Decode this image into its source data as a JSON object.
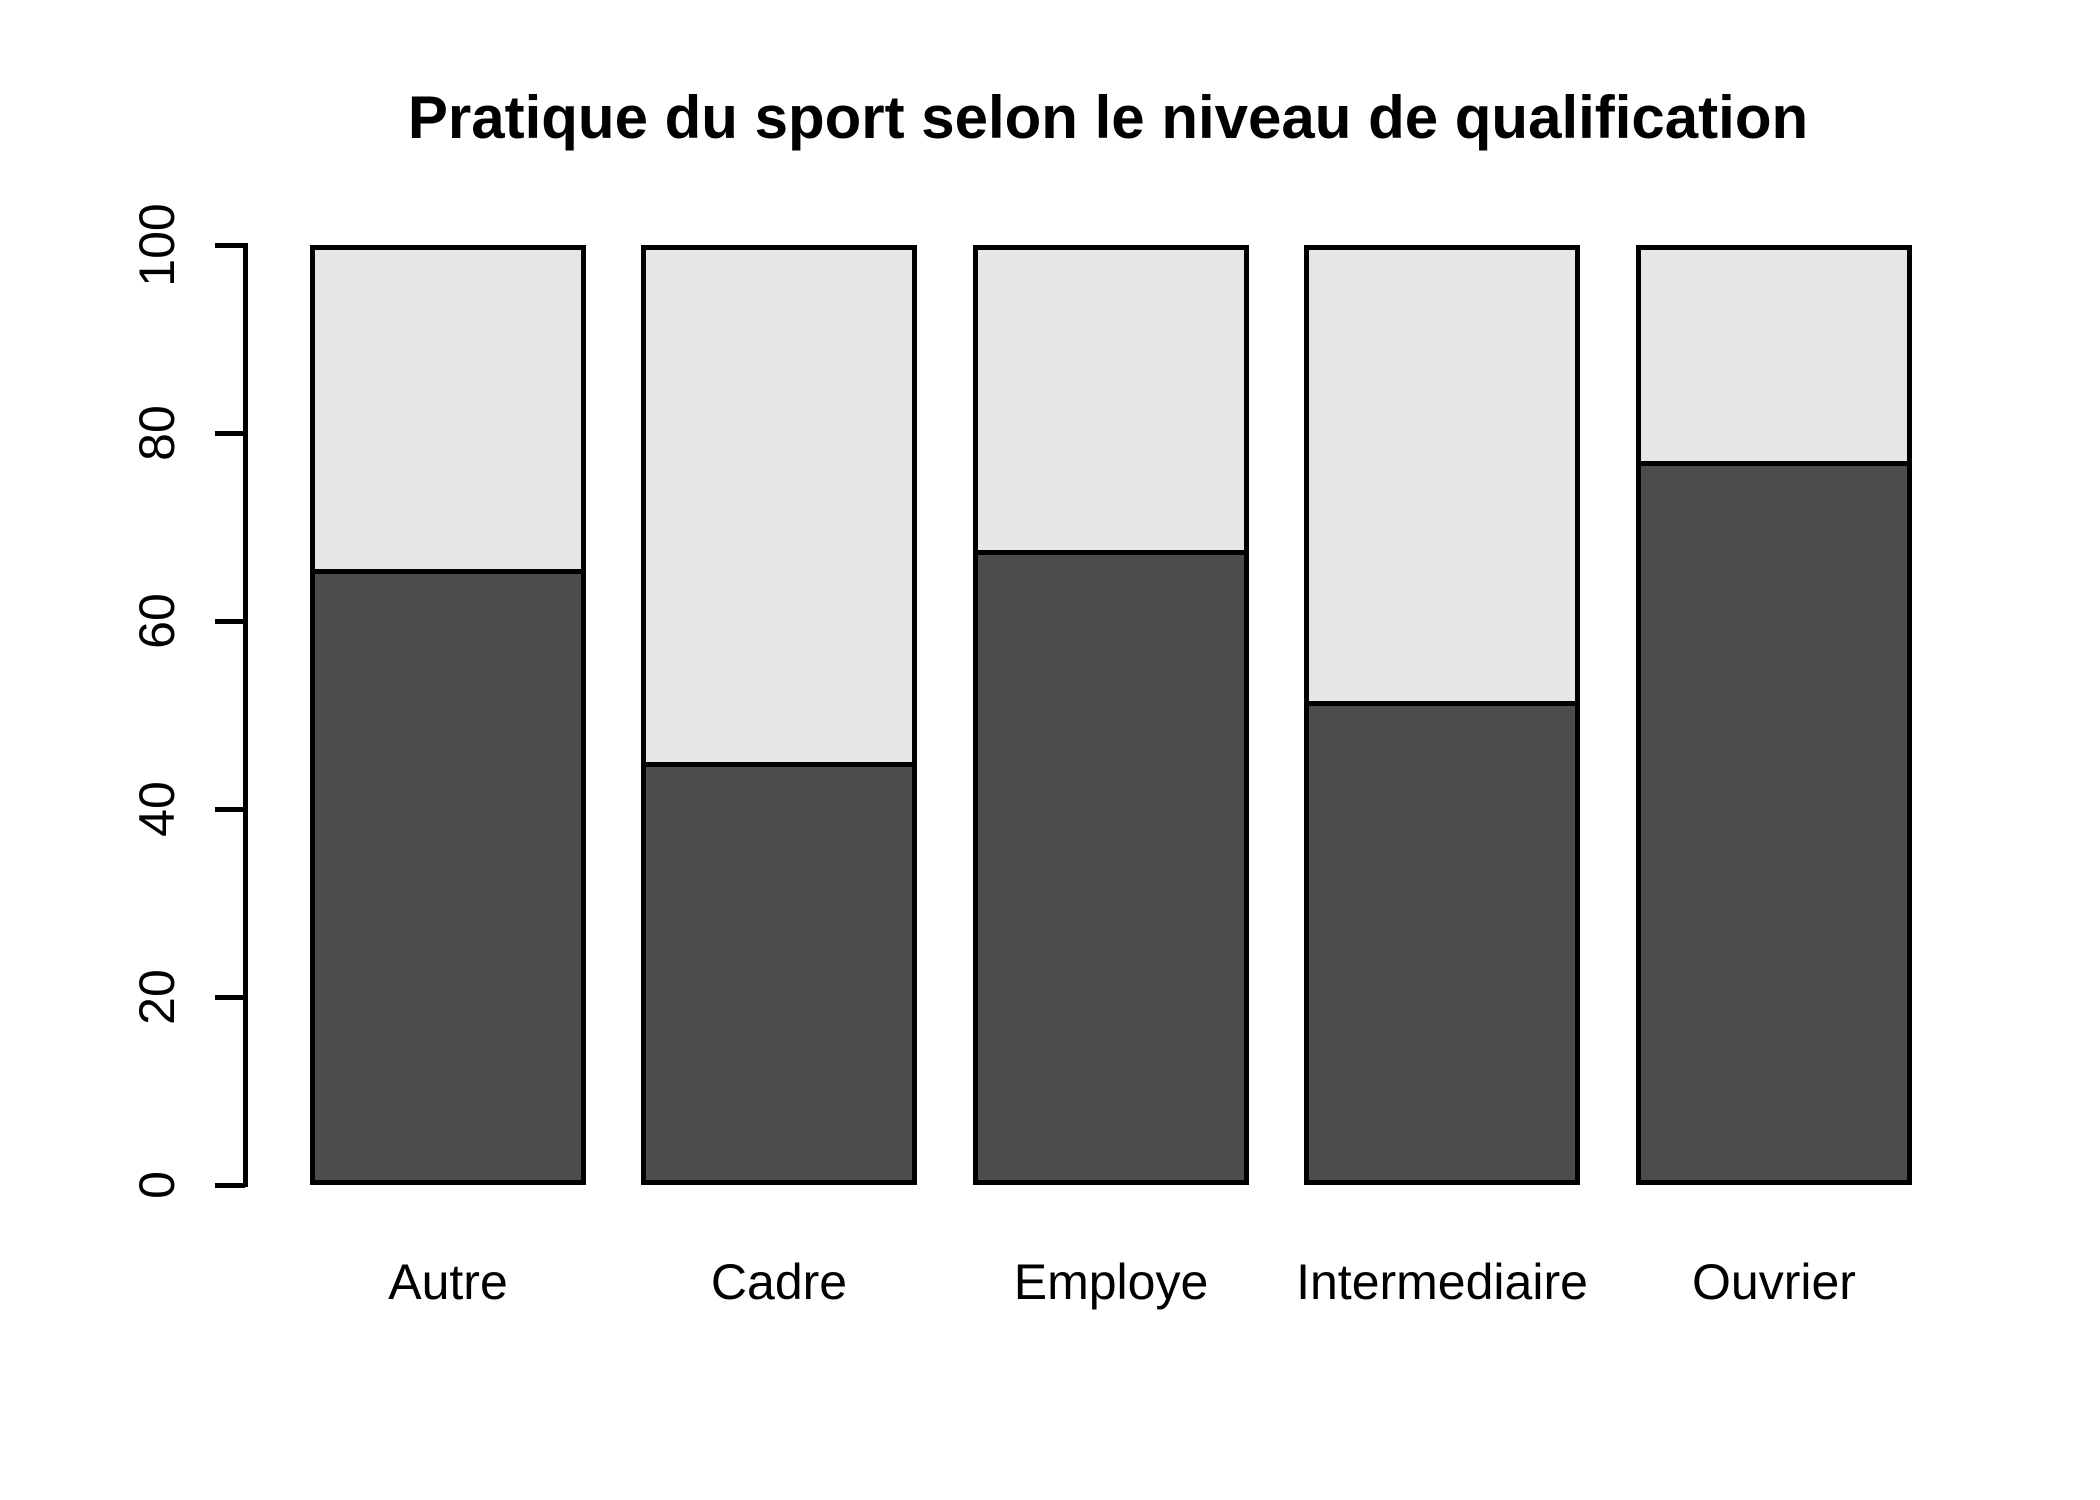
{
  "chart_data": {
    "type": "bar",
    "stacked": true,
    "title": "Pratique du sport selon le niveau de qualification",
    "categories": [
      "Autre",
      "Cadre",
      "Employe",
      "Intermediaire",
      "Ouvrier"
    ],
    "series": [
      {
        "name": "segment-bottom-dark",
        "color": "#4D4D4D",
        "values": [
          65.5,
          45,
          67.5,
          51.5,
          77
        ]
      },
      {
        "name": "segment-top-light",
        "color": "#E6E6E6",
        "values": [
          34.5,
          55,
          32.5,
          48.5,
          23
        ]
      }
    ],
    "xlabel": "",
    "ylabel": "",
    "ylim": [
      0,
      100
    ],
    "yticks": [
      0,
      20,
      40,
      60,
      80,
      100
    ],
    "grid": false,
    "legend": "none",
    "bar_border_color": "#000000",
    "background_color": "#FFFFFF"
  }
}
